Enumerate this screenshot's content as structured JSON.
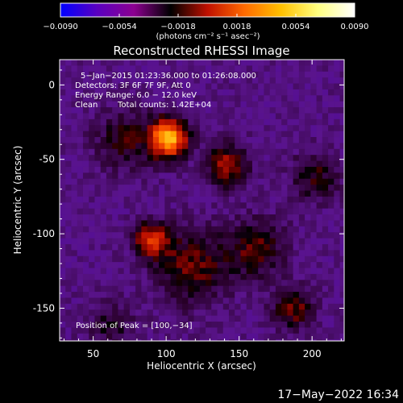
{
  "chart_data": {
    "type": "heatmap",
    "title": "Reconstructed RHESSI Image",
    "xlabel": "Heliocentric X (arcsec)",
    "ylabel": "Heliocentric Y (arcsec)",
    "xlim": [
      27,
      222
    ],
    "ylim": [
      -172,
      17
    ],
    "xticks": [
      50,
      100,
      150,
      200
    ],
    "yticks": [
      0,
      -50,
      -100,
      -150
    ],
    "xtick_labels": [
      "50",
      "100",
      "150",
      "200"
    ],
    "ytick_labels": [
      "0",
      "-50",
      "-100",
      "-150"
    ],
    "colorbar": {
      "range": [
        -0.009,
        0.009
      ],
      "ticks": [
        -0.009,
        -0.0054,
        -0.0018,
        0.0018,
        0.0054,
        0.009
      ],
      "tick_labels": [
        "−0.0090",
        "−0.0054",
        "−0.0018",
        "0.0018",
        "0.0054",
        "0.0090"
      ],
      "unit_label": "(photons cm⁻² s⁻¹ asec⁻²)",
      "colors": [
        "#0000ff",
        "#5a00c0",
        "#8c0090",
        "#000000",
        "#c01000",
        "#ff6a00",
        "#ffc000",
        "#ffff80",
        "#ffffff"
      ]
    },
    "annotations": [
      "5−Jan−2015 01:23:36.000 to 01:26:08.000",
      "Detectors: 3F 6F 7F 9F, Att 0",
      "Energy Range: 6.0 − 12.0 keV",
      "Clean",
      "Total counts: 1.42E+04"
    ],
    "peak_label": "Position of Peak = [100,−34]",
    "sources": [
      {
        "x": 100,
        "y": -34,
        "level": 1.0,
        "width": 9
      },
      {
        "x": 88,
        "y": -102,
        "level": 0.62,
        "width": 8
      },
      {
        "x": 140,
        "y": -52,
        "level": 0.5,
        "width": 10
      },
      {
        "x": 160,
        "y": -108,
        "level": 0.35,
        "width": 14
      },
      {
        "x": 185,
        "y": -148,
        "level": 0.4,
        "width": 10
      },
      {
        "x": 115,
        "y": -120,
        "level": 0.38,
        "width": 18
      },
      {
        "x": 70,
        "y": -35,
        "level": 0.3,
        "width": 15
      },
      {
        "x": 200,
        "y": -60,
        "level": 0.3,
        "width": 12
      },
      {
        "x": 60,
        "y": -160,
        "level": 0.22,
        "width": 12
      }
    ]
  },
  "footer": {
    "date": "17−May−2022 16:34"
  }
}
